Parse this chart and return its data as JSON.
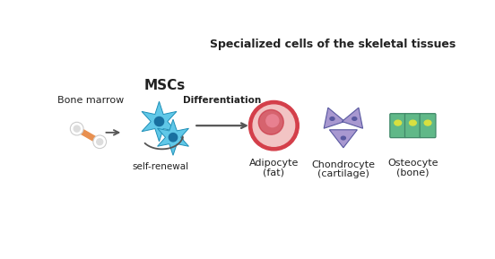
{
  "title": "Specialized cells of the skeletal tissues",
  "title_fontsize": 9,
  "title_fontweight": "bold",
  "bg_color": "#ffffff",
  "bone_marrow_label": "Bone marrow",
  "mscs_label": "MSCs",
  "differentiation_label": "Differentiation",
  "self_renewal_label": "self-renewal",
  "cell_labels_line1": [
    "Adipocyte",
    "Chondrocyte",
    "Osteocyte"
  ],
  "cell_labels_line2": [
    "(fat)",
    "(cartilage)",
    "(bone)"
  ],
  "adipocyte_ring_color": "#d43f4a",
  "adipocyte_fill_color": "#f2c4c4",
  "adipocyte_nucleus_color": "#c83040",
  "adipocyte_nucleus_fill": "#e06070",
  "chondrocyte_color": "#a898d0",
  "chondrocyte_dark": "#8878b0",
  "chondrocyte_nucleus": "#5858a0",
  "osteocyte_color": "#60b888",
  "osteocyte_dark": "#408868",
  "osteocyte_nucleus_color": "#d8e040",
  "msc_color": "#60c8e8",
  "msc_dark": "#2090b8",
  "msc_nucleus": "#1870a0",
  "arrow_color": "#555555",
  "bone_shaft_color": "#e89050",
  "bone_knob_color": "#ffffff",
  "bone_knob_ec": "#cccccc",
  "label_fontsize": 8,
  "small_fontsize": 7.5,
  "mscs_fontsize": 11
}
